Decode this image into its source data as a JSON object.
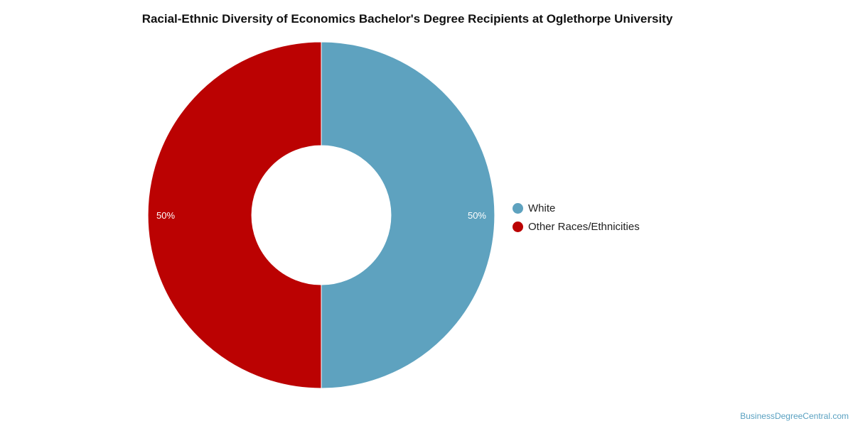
{
  "chart_data": {
    "type": "pie",
    "variant": "donut",
    "title": "Racial-Ethnic Diversity of Economics Bachelor's Degree Recipients at Oglethorpe University",
    "categories": [
      "White",
      "Other Races/Ethnicities"
    ],
    "values": [
      50,
      50
    ],
    "data_labels": [
      "50%",
      "50%"
    ],
    "colors": [
      "#5ea2bf",
      "#bb0202"
    ],
    "legend_position": "right"
  },
  "source_credit": "BusinessDegreeCentral.com"
}
